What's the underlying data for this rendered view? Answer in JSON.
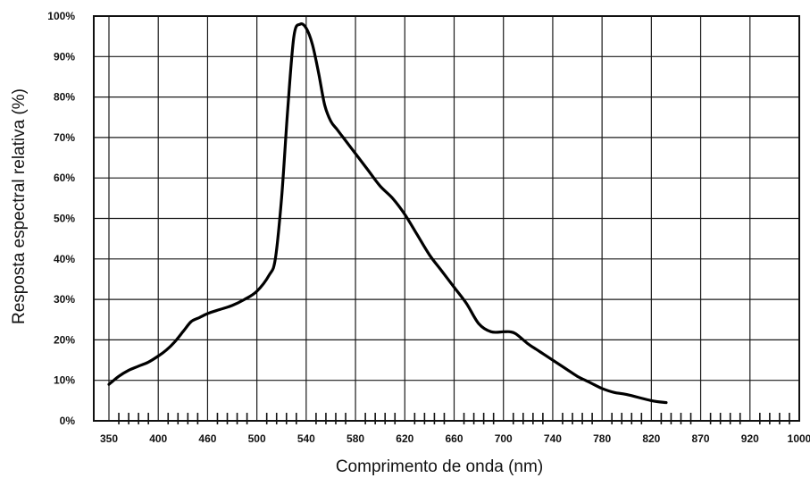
{
  "chart_data": {
    "type": "line",
    "xlabel": "Comprimento de onda (nm)",
    "ylabel": "Resposta espectral relativa (%)",
    "x_ticks": [
      "350",
      "400",
      "460",
      "500",
      "540",
      "580",
      "620",
      "660",
      "700",
      "740",
      "780",
      "820",
      "870",
      "920",
      "1000"
    ],
    "y_ticks": [
      "0%",
      "10%",
      "20%",
      "30%",
      "40%",
      "50%",
      "60%",
      "70%",
      "80%",
      "90%",
      "100%"
    ],
    "ylim": [
      0,
      100
    ],
    "grid": true,
    "series": [
      {
        "x": [
          350,
          360,
          370,
          380,
          390,
          400,
          410,
          420,
          430,
          440,
          450,
          460,
          470,
          480,
          490,
          500,
          510,
          515,
          520,
          525,
          530,
          535,
          540,
          545,
          550,
          555,
          560,
          565,
          570,
          580,
          590,
          600,
          610,
          620,
          630,
          640,
          650,
          660,
          670,
          680,
          690,
          700,
          705,
          710,
          720,
          725,
          730,
          740,
          750,
          760,
          770,
          780,
          790,
          800,
          820,
          835
        ],
        "y": [
          9,
          11,
          12.5,
          13.5,
          14.5,
          16,
          17.5,
          19.5,
          22,
          24.5,
          25.5,
          26.5,
          27.5,
          28.5,
          30,
          32,
          36,
          40,
          55,
          77,
          95,
          98,
          97,
          93,
          86,
          78,
          74,
          72,
          70,
          66,
          62,
          58,
          55,
          51,
          46,
          41,
          37,
          33,
          29,
          24,
          22,
          22,
          22,
          21.5,
          19,
          18,
          17,
          15,
          13,
          11,
          9.5,
          8,
          7,
          6.5,
          5,
          4.5
        ]
      }
    ]
  }
}
